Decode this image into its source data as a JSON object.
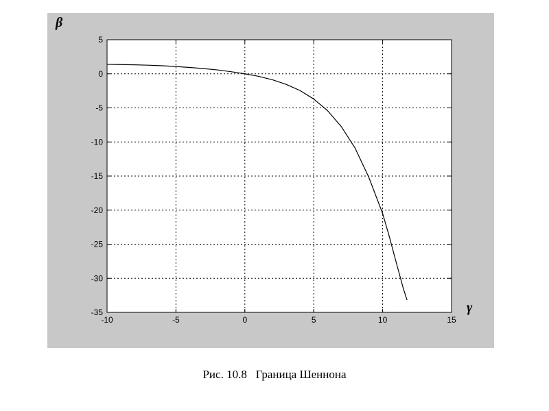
{
  "chart_data": {
    "type": "line",
    "title": "",
    "xlabel": "γ",
    "ylabel": "β",
    "xlim": [
      -10,
      15
    ],
    "ylim": [
      -35,
      5
    ],
    "xticks": [
      -10,
      -5,
      0,
      5,
      10,
      15
    ],
    "yticks": [
      5,
      0,
      -5,
      -10,
      -15,
      -20,
      -25,
      -30,
      -35
    ],
    "grid": true,
    "series": [
      {
        "x": [
          -10,
          -9,
          -8,
          -7,
          -6,
          -5,
          -4,
          -3,
          -2,
          -1,
          0,
          1,
          2,
          3,
          4,
          5,
          6,
          7,
          8,
          9,
          10,
          10.5,
          11,
          11.5,
          11.77
        ],
        "y": [
          1.39,
          1.36,
          1.32,
          1.26,
          1.18,
          1.07,
          0.93,
          0.77,
          0.57,
          0.31,
          0.0,
          -0.37,
          -0.87,
          -1.55,
          -2.45,
          -3.7,
          -5.4,
          -7.75,
          -10.9,
          -15.2,
          -20.5,
          -24.0,
          -27.8,
          -31.5,
          -33.2
        ]
      }
    ]
  },
  "colors": {
    "panel_background": "#c8c8c8",
    "plot_background": "#ffffff",
    "line": "#000000",
    "grid": "#000000"
  },
  "caption": {
    "figure_number": "Рис. 10.8",
    "title": "Граница Шеннона"
  }
}
